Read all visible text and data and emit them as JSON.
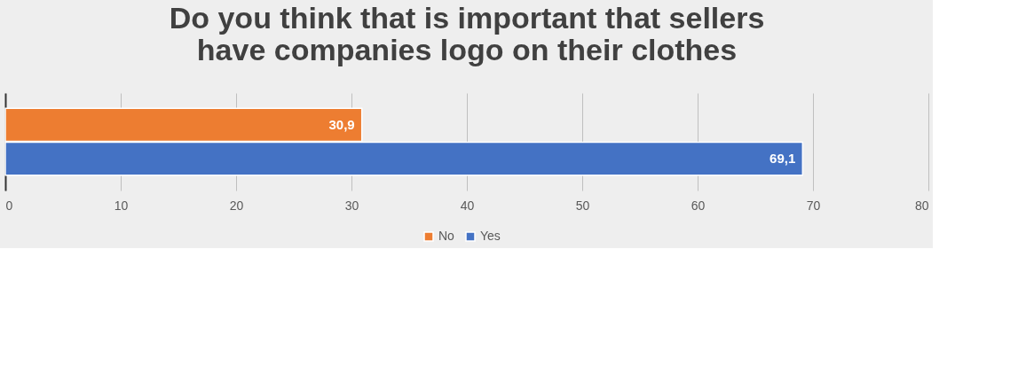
{
  "chart_data": {
    "type": "bar",
    "orientation": "horizontal",
    "title": "Do you think that is important that sellers have companies logo on their clothes",
    "categories": [
      null
    ],
    "series": [
      {
        "name": "No",
        "color": "#ed7d31",
        "values": [
          30.9
        ],
        "value_labels": [
          "30,9"
        ]
      },
      {
        "name": "Yes",
        "color": "#4472c4",
        "values": [
          69.1
        ],
        "value_labels": [
          "69,1"
        ]
      }
    ],
    "xlim": [
      0,
      80
    ],
    "xticks": [
      0,
      10,
      20,
      30,
      40,
      50,
      60,
      70,
      80
    ],
    "grid": "x",
    "legend": "bottom"
  }
}
